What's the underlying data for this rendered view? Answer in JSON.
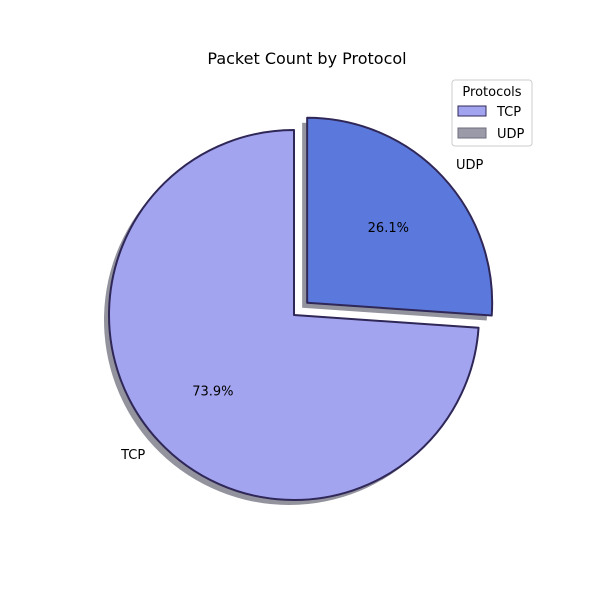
{
  "chart_data": {
    "type": "pie",
    "title": "Packet Count by Protocol",
    "start_angle_deg": 90,
    "direction": "clockwise",
    "shadow": true,
    "legend": {
      "title": "Protocols",
      "placement": "top-right",
      "entries": [
        "TCP",
        "UDP"
      ]
    },
    "slices": [
      {
        "label": "UDP",
        "value": 26.1,
        "pct_label": "26.1%",
        "color": "#5b79dc",
        "explode": true
      },
      {
        "label": "TCP",
        "value": 73.9,
        "pct_label": "73.9%",
        "color": "#a3a4ef",
        "explode": false
      }
    ],
    "edge_color": "#2f2757"
  }
}
